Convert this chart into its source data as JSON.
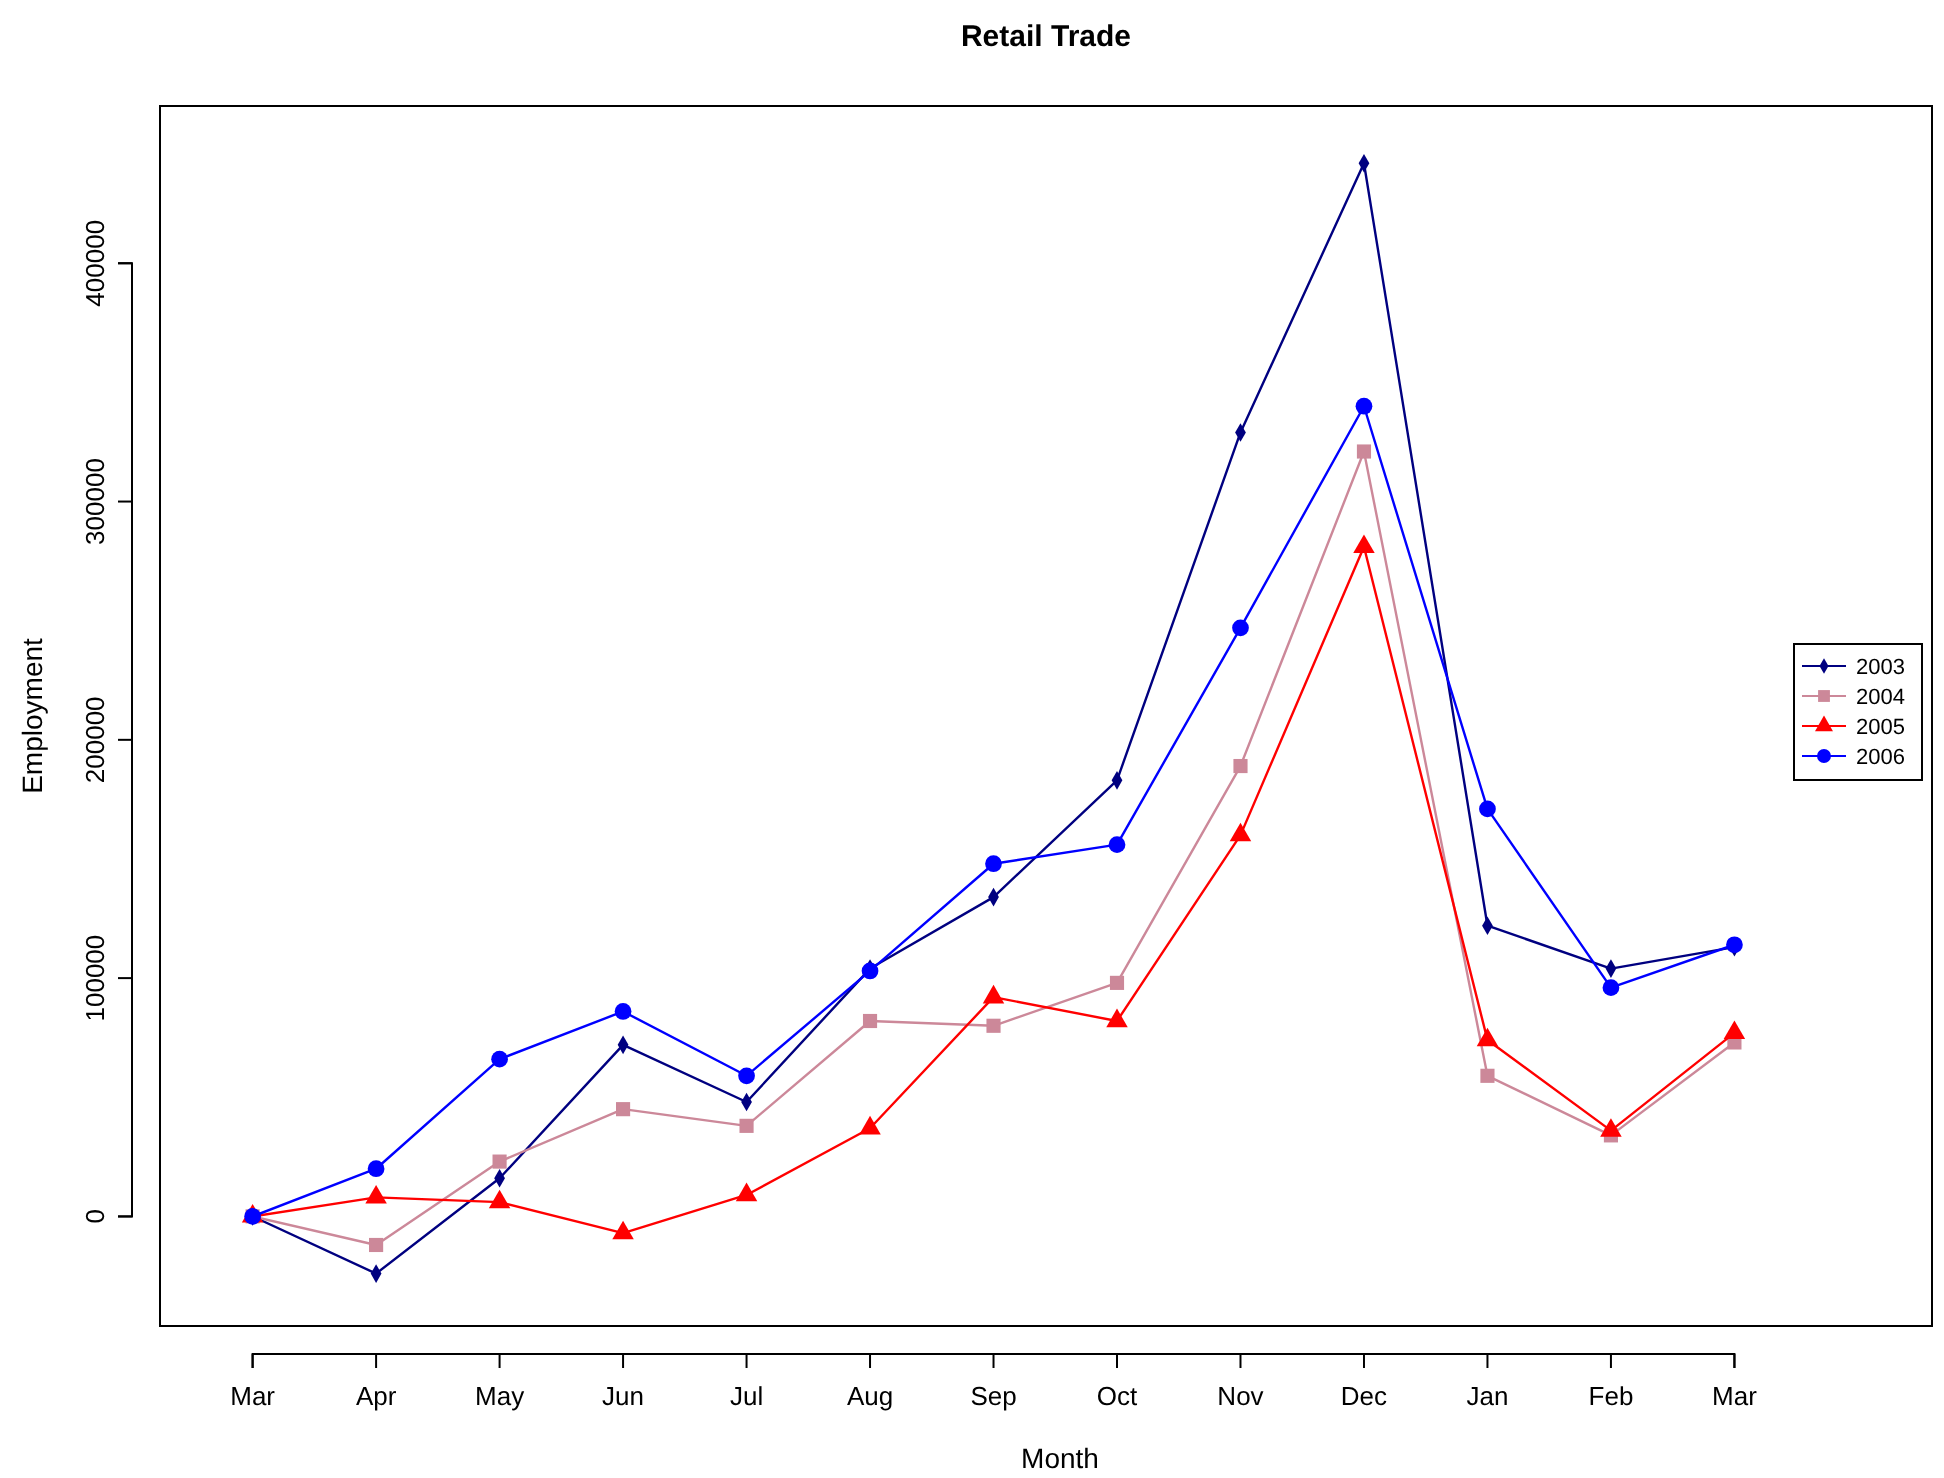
{
  "chart_data": {
    "type": "line",
    "title": "Retail Trade",
    "xlabel": "Month",
    "ylabel": "Employment",
    "categories": [
      "Mar",
      "Apr",
      "May",
      "Jun",
      "Jul",
      "Aug",
      "Sep",
      "Oct",
      "Nov",
      "Dec",
      "Jan",
      "Feb",
      "Mar"
    ],
    "series": [
      {
        "name": "2003",
        "color": "#000080",
        "marker": "diamond",
        "values": [
          0,
          -24000,
          16000,
          72000,
          48000,
          104000,
          134000,
          183000,
          329000,
          442000,
          122000,
          104000,
          113000
        ]
      },
      {
        "name": "2004",
        "color": "#cc8899",
        "marker": "square",
        "values": [
          0,
          -12000,
          23000,
          45000,
          38000,
          82000,
          80000,
          98000,
          189000,
          321000,
          59000,
          34000,
          73000
        ]
      },
      {
        "name": "2005",
        "color": "#ff0000",
        "marker": "triangle",
        "values": [
          0,
          8000,
          6000,
          -7000,
          9000,
          37000,
          92000,
          82000,
          160000,
          281000,
          74000,
          36000,
          77000
        ]
      },
      {
        "name": "2006",
        "color": "#0000ff",
        "marker": "circle",
        "values": [
          0,
          20000,
          66000,
          86000,
          59000,
          103000,
          148000,
          156000,
          247000,
          340000,
          171000,
          96000,
          114000
        ]
      }
    ],
    "ylim": [
      -46000,
      466000
    ],
    "yticks": [
      0,
      100000,
      200000,
      300000,
      400000
    ],
    "grid": false,
    "legend": "right"
  }
}
